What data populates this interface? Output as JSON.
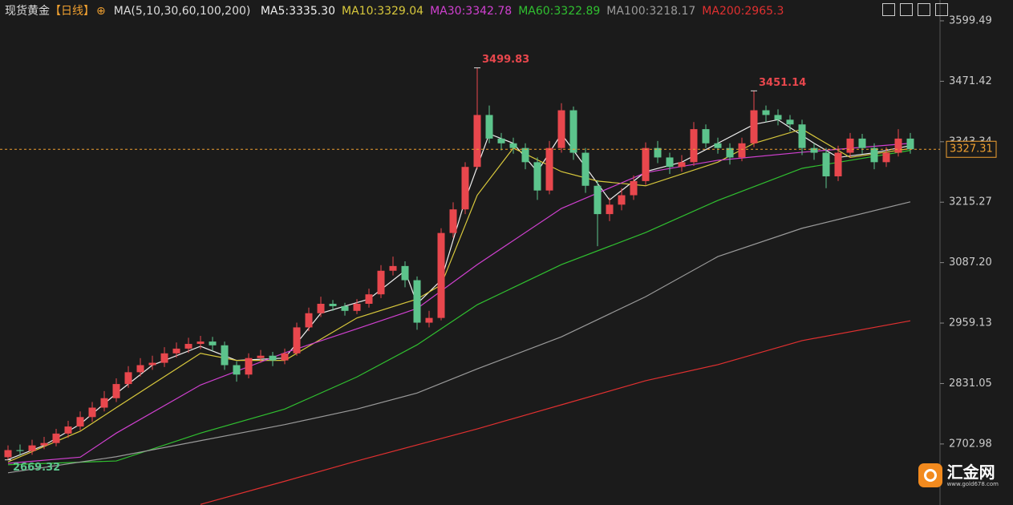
{
  "header": {
    "symbol": "现货黄金",
    "period": "【日线】",
    "ma_params": "MA(5,10,30,60,100,200)"
  },
  "chart_data": {
    "type": "candlestick",
    "open": [
      2675,
      2690,
      2688,
      2700,
      2705,
      2725,
      2740,
      2760,
      2780,
      2800,
      2830,
      2855,
      2870,
      2875,
      2895,
      2905,
      2915,
      2920,
      2912,
      2870,
      2850,
      2885,
      2890,
      2880,
      2895,
      2950,
      2980,
      3000,
      2995,
      2985,
      3000,
      3020,
      3070,
      3080,
      3050,
      2960,
      2970,
      3150,
      3200,
      3290,
      3400,
      3350,
      3340,
      3330,
      3300,
      3240,
      3330,
      3410,
      3320,
      3250,
      3190,
      3210,
      3230,
      3260,
      3330,
      3310,
      3290,
      3300,
      3370,
      3340,
      3330,
      3310,
      3340,
      3410,
      3400,
      3390,
      3380,
      3330,
      3320,
      3270,
      3320,
      3350,
      3330,
      3300,
      3320,
      3350
    ],
    "high": [
      2700,
      2702,
      2712,
      2718,
      2735,
      2752,
      2772,
      2792,
      2815,
      2842,
      2868,
      2885,
      2890,
      2908,
      2918,
      2928,
      2932,
      2930,
      2920,
      2878,
      2895,
      2902,
      2898,
      2905,
      2960,
      2992,
      3015,
      3008,
      3002,
      3010,
      3032,
      3082,
      3100,
      3090,
      3058,
      2985,
      3160,
      3215,
      3300,
      3499.83,
      3420,
      3362,
      3352,
      3340,
      3310,
      3345,
      3425,
      3418,
      3330,
      3262,
      3225,
      3245,
      3272,
      3342,
      3345,
      3320,
      3315,
      3385,
      3380,
      3352,
      3340,
      3352,
      3451.14,
      3420,
      3412,
      3400,
      3390,
      3340,
      3330,
      3335,
      3362,
      3360,
      3340,
      3332,
      3370,
      3362
    ],
    "low": [
      2669.32,
      2678,
      2680,
      2692,
      2698,
      2716,
      2732,
      2750,
      2772,
      2792,
      2822,
      2846,
      2860,
      2866,
      2886,
      2896,
      2904,
      2900,
      2860,
      2835,
      2842,
      2875,
      2868,
      2872,
      2890,
      2942,
      2972,
      2985,
      2975,
      2978,
      2992,
      3012,
      3060,
      3035,
      2945,
      2950,
      2965,
      3140,
      3190,
      3285,
      3340,
      3325,
      3318,
      3285,
      3220,
      3232,
      3320,
      3305,
      3235,
      3122,
      3175,
      3198,
      3220,
      3252,
      3298,
      3275,
      3280,
      3292,
      3330,
      3318,
      3295,
      3302,
      3332,
      3385,
      3378,
      3365,
      3315,
      3305,
      3245,
      3260,
      3310,
      3318,
      3285,
      3290,
      3312,
      3318
    ],
    "close": [
      2690,
      2688,
      2700,
      2705,
      2725,
      2740,
      2760,
      2780,
      2800,
      2830,
      2855,
      2870,
      2875,
      2895,
      2905,
      2915,
      2920,
      2912,
      2870,
      2850,
      2885,
      2890,
      2880,
      2895,
      2950,
      2980,
      3000,
      2995,
      2985,
      3000,
      3020,
      3070,
      3080,
      3050,
      2960,
      2970,
      3150,
      3200,
      3290,
      3400,
      3350,
      3340,
      3330,
      3300,
      3240,
      3330,
      3410,
      3320,
      3250,
      3190,
      3210,
      3230,
      3260,
      3330,
      3310,
      3290,
      3300,
      3370,
      3340,
      3330,
      3310,
      3340,
      3410,
      3400,
      3390,
      3380,
      3330,
      3320,
      3270,
      3320,
      3350,
      3330,
      3300,
      3320,
      3350,
      3327.31
    ],
    "up_color": "#e8474d",
    "down_color": "#5cc48c",
    "last_price_color": "#f0a030",
    "ylim": [
      2573.7,
      3643.6
    ],
    "yticks": [
      2702.98,
      2831.05,
      2959.13,
      {
        "value": 3087.2,
        "label": "3087.20"
      },
      3215.27,
      3343.34,
      3471.42,
      3599.49
    ],
    "ma_series": [
      {
        "name": "MA5:3335.30",
        "color": "#eeeeee",
        "x": [
          0,
          3,
          6,
          9,
          12,
          16,
          19,
          23,
          26,
          30,
          33,
          34,
          36,
          38,
          40,
          42,
          44,
          46,
          48,
          50,
          53,
          56,
          59,
          62,
          64,
          67,
          69,
          72,
          75
        ],
        "values": [
          2670,
          2700,
          2745,
          2810,
          2870,
          2910,
          2880,
          2885,
          2980,
          3010,
          3070,
          3000,
          3050,
          3220,
          3360,
          3340,
          3280,
          3360,
          3290,
          3220,
          3280,
          3300,
          3340,
          3380,
          3390,
          3340,
          3310,
          3320,
          3335
        ]
      },
      {
        "name": "MA10:3329.04",
        "color": "#d8c83c",
        "x": [
          0,
          6,
          9,
          16,
          19,
          23,
          29,
          34,
          36,
          39,
          42,
          46,
          49,
          53,
          59,
          62,
          66,
          70,
          75
        ],
        "values": [
          2665,
          2730,
          2780,
          2895,
          2880,
          2880,
          2970,
          3010,
          3040,
          3230,
          3330,
          3280,
          3260,
          3250,
          3300,
          3340,
          3370,
          3310,
          3329
        ]
      },
      {
        "name": "MA30:3342.78",
        "color": "#d040d0",
        "x": [
          0,
          6,
          9,
          16,
          23,
          29,
          34,
          39,
          46,
          53,
          59,
          66,
          75
        ],
        "values": [
          2662,
          2675,
          2726,
          2828,
          2896,
          2947,
          2990,
          3083,
          3202,
          3278,
          3304,
          3321,
          3340
        ]
      },
      {
        "name": "MA60:3322.89",
        "color": "#30c030",
        "x": [
          0,
          9,
          16,
          23,
          29,
          34,
          39,
          46,
          53,
          59,
          66,
          75
        ],
        "values": [
          2659,
          2667,
          2726,
          2777,
          2845,
          2913,
          2998,
          3083,
          3151,
          3219,
          3287,
          3325
        ]
      },
      {
        "name": "MA100:3218.17",
        "color": "#9a9a9a",
        "x": [
          0,
          9,
          16,
          23,
          29,
          34,
          39,
          46,
          53,
          59,
          66,
          75
        ],
        "values": [
          2642,
          2676,
          2710,
          2744,
          2777,
          2811,
          2862,
          2930,
          3015,
          3100,
          3160,
          3216
        ]
      },
      {
        "name": "MA200:2965.3",
        "color": "#e03030",
        "x": [
          16,
          23,
          29,
          34,
          39,
          46,
          53,
          59,
          66,
          75
        ],
        "values": [
          2575,
          2624,
          2667,
          2701,
          2735,
          2786,
          2837,
          2871,
          2922,
          2964
        ]
      }
    ]
  },
  "watermark": {
    "brand": "汇金网",
    "url": "www.gold678.com"
  }
}
